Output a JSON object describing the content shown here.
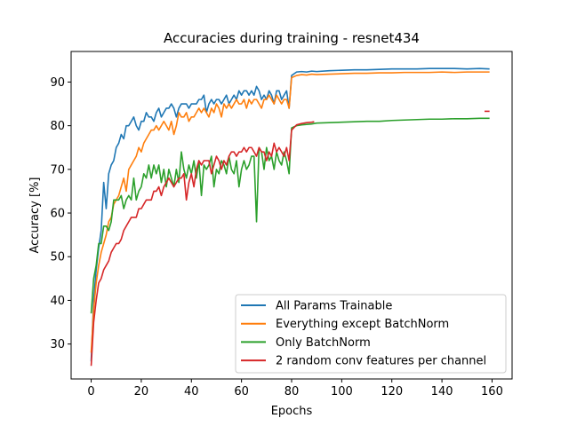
{
  "chart_data": {
    "type": "line",
    "title": "Accuracies during training - resnet434",
    "xlabel": "Epochs",
    "ylabel": "Accuracy [%]",
    "xlim": [
      -8,
      168
    ],
    "ylim": [
      22,
      97
    ],
    "xticks": [
      0,
      20,
      40,
      60,
      80,
      100,
      120,
      140,
      160
    ],
    "yticks": [
      30,
      40,
      50,
      60,
      70,
      80,
      90
    ],
    "grid": false,
    "legend_position": "lower-right",
    "series": [
      {
        "name": "All Params Trainable",
        "color": "#1f77b4",
        "segments": [
          {
            "x": [
              0,
              1,
              2,
              3,
              4,
              5,
              6,
              7,
              8,
              9,
              10,
              11,
              12,
              13,
              14,
              15,
              16,
              17,
              18,
              19,
              20,
              21,
              22,
              23,
              24,
              25,
              26,
              27,
              28,
              29,
              30,
              31,
              32,
              33,
              34,
              35,
              36,
              37,
              38,
              39,
              40,
              41,
              42,
              43,
              44,
              45,
              46,
              47,
              48,
              49,
              50,
              51,
              52,
              53,
              54,
              55,
              56,
              57,
              58,
              59,
              60,
              61,
              62,
              63,
              64,
              65,
              66,
              67,
              68,
              69,
              70,
              71,
              72,
              73,
              74,
              75,
              76,
              77,
              78,
              79,
              80,
              82,
              84,
              86,
              88,
              90,
              95,
              100,
              105,
              110,
              115,
              120,
              125,
              130,
              135,
              140,
              145,
              150,
              155,
              159
            ],
            "y": [
              26,
              40,
              47,
              52,
              56,
              67,
              61,
              69,
              71,
              72,
              75,
              76,
              78,
              77,
              80,
              80,
              81,
              82,
              80,
              79,
              81,
              81,
              83,
              82,
              82,
              81,
              83,
              84,
              82,
              83,
              84,
              84,
              85,
              84,
              82,
              84,
              85,
              85,
              85,
              84,
              85,
              85,
              85,
              86,
              86,
              87,
              83,
              85,
              86,
              85,
              86,
              86,
              85,
              86,
              87,
              85,
              86,
              87,
              86,
              88,
              87,
              88,
              88,
              87,
              88,
              87,
              89,
              88,
              86,
              87,
              86,
              88,
              87,
              85,
              88,
              88,
              86,
              87,
              88,
              84,
              91.5,
              92.3,
              92.4,
              92.3,
              92.5,
              92.4,
              92.6,
              92.7,
              92.8,
              92.8,
              92.9,
              93.0,
              93.0,
              93.0,
              93.1,
              93.1,
              93.1,
              93.0,
              93.1,
              93.0
            ]
          }
        ]
      },
      {
        "name": "Everything except BatchNorm",
        "color": "#ff7f0e",
        "segments": [
          {
            "x": [
              0,
              1,
              2,
              3,
              4,
              5,
              6,
              7,
              8,
              9,
              10,
              11,
              12,
              13,
              14,
              15,
              16,
              17,
              18,
              19,
              20,
              21,
              22,
              23,
              24,
              25,
              26,
              27,
              28,
              29,
              30,
              31,
              32,
              33,
              34,
              35,
              36,
              37,
              38,
              39,
              40,
              41,
              42,
              43,
              44,
              45,
              46,
              47,
              48,
              49,
              50,
              51,
              52,
              53,
              54,
              55,
              56,
              57,
              58,
              59,
              60,
              61,
              62,
              63,
              64,
              65,
              66,
              67,
              68,
              69,
              70,
              71,
              72,
              73,
              74,
              75,
              76,
              77,
              78,
              79,
              80,
              82,
              84,
              86,
              88,
              90,
              95,
              100,
              105,
              110,
              115,
              120,
              125,
              130,
              135,
              140,
              145,
              150,
              155,
              159
            ],
            "y": [
              28,
              38,
              44,
              48,
              51,
              53,
              55,
              58,
              59,
              62,
              63,
              64,
              66,
              68,
              65,
              70,
              71,
              72,
              73,
              75,
              74,
              76,
              77,
              78,
              79,
              79,
              80,
              79,
              80,
              81,
              80,
              79,
              81,
              78,
              80,
              83,
              82,
              82,
              83,
              81,
              82,
              82,
              83,
              84,
              83,
              84,
              83,
              82,
              84,
              83,
              85,
              84,
              82,
              85,
              84,
              85,
              84,
              85,
              86,
              85,
              85,
              86,
              84,
              86,
              85,
              86,
              86,
              85,
              84,
              86,
              86,
              87,
              86,
              85,
              87,
              86,
              85,
              86,
              86,
              84,
              91.0,
              91.5,
              91.7,
              91.6,
              91.8,
              91.7,
              91.8,
              91.9,
              92.0,
              92.0,
              92.1,
              92.1,
              92.2,
              92.2,
              92.2,
              92.3,
              92.2,
              92.3,
              92.3,
              92.3
            ]
          }
        ]
      },
      {
        "name": "Only BatchNorm",
        "color": "#2ca02c",
        "segments": [
          {
            "x": [
              0,
              1,
              2,
              3,
              4,
              5,
              6,
              7,
              8,
              9,
              10,
              11,
              12,
              13,
              14,
              15,
              16,
              17,
              18,
              19,
              20,
              21,
              22,
              23,
              24,
              25,
              26,
              27,
              28,
              29,
              30,
              31,
              32,
              33,
              34,
              35,
              36,
              37,
              38,
              39,
              40,
              41,
              42,
              43,
              44,
              45,
              46,
              47,
              48,
              49,
              50,
              51,
              52,
              53,
              54,
              55,
              56,
              57,
              58,
              59,
              60,
              61,
              62,
              63,
              64,
              65,
              66,
              67,
              68,
              69,
              70,
              71,
              72,
              73,
              74,
              75,
              76,
              77,
              78,
              79,
              80,
              82,
              84,
              86,
              88,
              90,
              95,
              100,
              105,
              110,
              115,
              120,
              125,
              130,
              135,
              140,
              145,
              150,
              155,
              159
            ],
            "y": [
              37,
              45,
              48,
              53,
              53,
              57,
              57,
              56,
              58,
              63,
              63,
              63,
              64,
              61,
              63,
              64,
              63,
              68,
              63,
              65,
              66,
              69,
              68,
              71,
              68,
              71,
              69,
              71,
              67,
              70,
              66,
              70,
              68,
              66,
              70,
              67,
              74,
              70,
              68,
              71,
              69,
              72,
              68,
              72,
              64,
              71,
              70,
              71,
              73,
              66,
              70,
              69,
              72,
              71,
              69,
              73,
              70,
              69,
              72,
              66,
              70,
              72,
              70,
              71,
              73,
              73,
              58,
              75,
              74,
              70,
              75,
              72,
              73,
              70,
              74,
              72,
              71,
              74,
              72,
              69,
              79.5,
              80.0,
              80.2,
              80.3,
              80.4,
              80.6,
              80.7,
              80.8,
              80.9,
              81.0,
              81.0,
              81.2,
              81.3,
              81.4,
              81.5,
              81.5,
              81.6,
              81.6,
              81.7,
              81.7
            ]
          }
        ]
      },
      {
        "name": "2 random conv features per channel",
        "color": "#d62728",
        "segments": [
          {
            "x": [
              0,
              1,
              2,
              3,
              4,
              5,
              6,
              7,
              8,
              9,
              10,
              11,
              12,
              13,
              14,
              15,
              16,
              17,
              18,
              19,
              20,
              21,
              22,
              23,
              24,
              25,
              26,
              27,
              28,
              29,
              30,
              31,
              32,
              33,
              34,
              35,
              36,
              37,
              38,
              39,
              40,
              41,
              42,
              43,
              44,
              45,
              46,
              47,
              48,
              49,
              50,
              51,
              52,
              53,
              54,
              55,
              56,
              57,
              58,
              59,
              60,
              61,
              62,
              63,
              64,
              65,
              66,
              67,
              68,
              69,
              70,
              71,
              72,
              73,
              74,
              75,
              76,
              77,
              78,
              79,
              80,
              82,
              84,
              86,
              88,
              89
            ],
            "y": [
              25,
              35,
              40,
              44,
              45,
              47,
              48,
              49,
              51,
              52,
              53,
              53,
              54,
              56,
              57,
              58,
              59,
              59,
              59,
              61,
              61,
              62,
              63,
              63,
              63,
              65,
              65,
              66,
              64,
              66,
              67,
              68,
              67,
              66,
              67,
              68,
              68,
              69,
              63,
              67,
              69,
              66,
              70,
              72,
              71,
              72,
              72,
              72,
              69,
              71,
              73,
              72,
              70,
              72,
              71,
              73,
              74,
              74,
              73,
              74,
              74,
              75,
              74,
              75,
              75,
              74,
              73,
              75,
              74,
              74,
              72,
              74,
              73,
              76,
              74,
              75,
              74,
              73,
              75,
              72,
              79,
              80.2,
              80.5,
              80.7,
              80.8,
              80.9
            ]
          },
          {
            "x": [
              157,
              159
            ],
            "y": [
              83.3,
              83.3
            ]
          }
        ]
      }
    ]
  }
}
